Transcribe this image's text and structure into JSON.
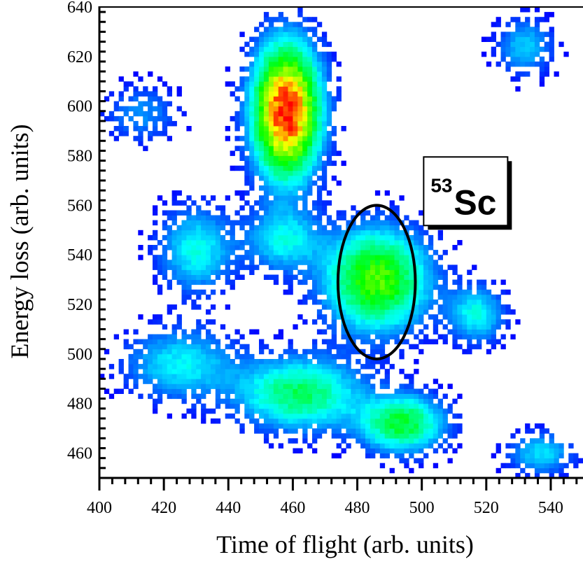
{
  "chart_data": {
    "type": "heatmap",
    "xlabel": "Time of flight (arb. units)",
    "ylabel": "Energy loss (arb. units)",
    "xlim": [
      400,
      550
    ],
    "ylim": [
      450,
      640
    ],
    "x_ticks": [
      400,
      420,
      440,
      460,
      480,
      500,
      520,
      540
    ],
    "y_ticks": [
      460,
      480,
      500,
      520,
      540,
      560,
      580,
      600,
      620,
      640
    ],
    "colormap": [
      "#0000ff",
      "#00ffff",
      "#00ff00",
      "#ffff00",
      "#ff0000"
    ],
    "clusters": [
      {
        "x": 458,
        "y": 598,
        "peak": 1.0,
        "sx": 7,
        "sy": 18
      },
      {
        "x": 486,
        "y": 530,
        "peak": 0.58,
        "sx": 11,
        "sy": 14
      },
      {
        "x": 462,
        "y": 484,
        "peak": 0.42,
        "sx": 13,
        "sy": 10
      },
      {
        "x": 494,
        "y": 472,
        "peak": 0.46,
        "sx": 9,
        "sy": 8
      },
      {
        "x": 430,
        "y": 542,
        "peak": 0.28,
        "sx": 8,
        "sy": 12
      },
      {
        "x": 457,
        "y": 546,
        "peak": 0.26,
        "sx": 8,
        "sy": 9
      },
      {
        "x": 425,
        "y": 496,
        "peak": 0.26,
        "sx": 12,
        "sy": 10
      },
      {
        "x": 517,
        "y": 516,
        "peak": 0.28,
        "sx": 6,
        "sy": 8
      },
      {
        "x": 532,
        "y": 624,
        "peak": 0.22,
        "sx": 6,
        "sy": 8
      },
      {
        "x": 537,
        "y": 460,
        "peak": 0.24,
        "sx": 7,
        "sy": 6
      },
      {
        "x": 413,
        "y": 597,
        "peak": 0.16,
        "sx": 8,
        "sy": 8
      }
    ],
    "annotations": [
      {
        "type": "circle",
        "x": 486,
        "y": 529,
        "rx": 12,
        "ry": 31
      },
      {
        "type": "label",
        "mass": "53",
        "element": "Sc",
        "x": 511,
        "y": 562
      }
    ]
  }
}
